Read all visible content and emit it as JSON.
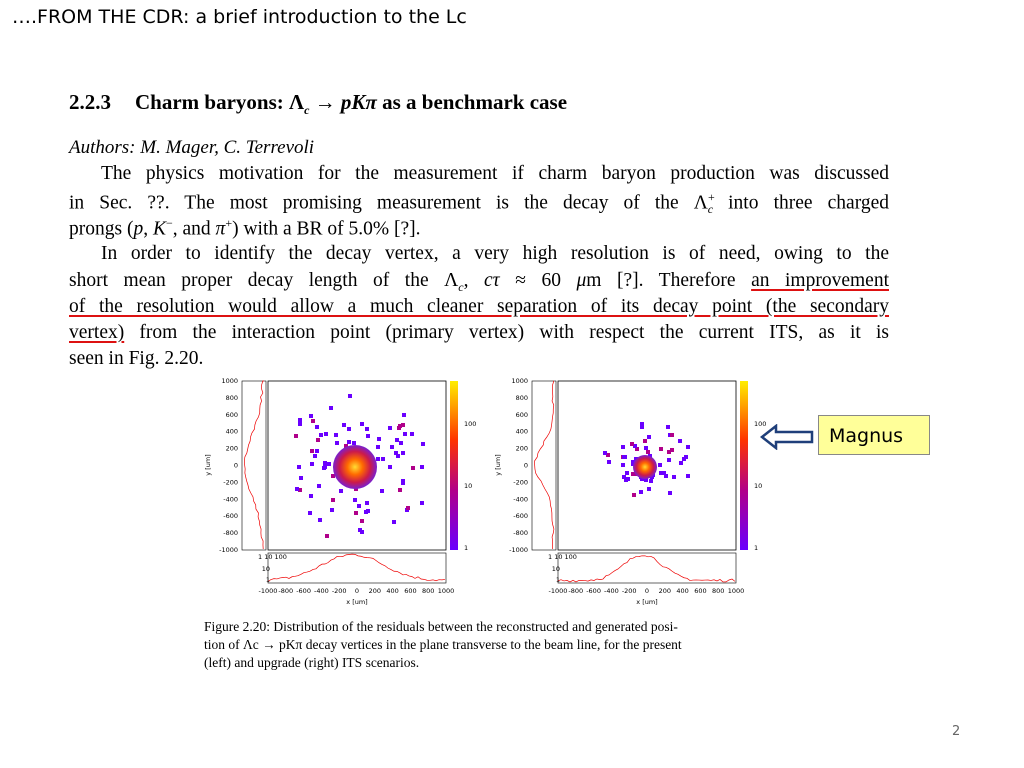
{
  "slide": {
    "title": "….FROM THE CDR: a brief introduction to the Lc",
    "page_number": "2"
  },
  "section": {
    "number": "2.2.3",
    "title": [
      "Charm baryons: Λ",
      "c",
      " → ",
      "pKπ",
      " as a benchmark case"
    ]
  },
  "authors": "Authors: M. Mager, C. Terrevoli",
  "paragraphs": [
    [
      [
        "The physics motivation for the measurement if charm baryon production was discussed"
      ],
      [
        "in Sec. ??. The most promising measurement is the decay of the Λ",
        "+",
        "c",
        " into three charged"
      ],
      [
        "prongs (",
        "p",
        ", ",
        "K",
        "−",
        ", and ",
        "π",
        "+",
        ") with a BR of 5.0% [?]."
      ]
    ],
    [
      [
        "In order to identify the decay vertex, a very high resolution is of need, owing to the"
      ],
      [
        "short mean proper decay length of the Λ",
        "c",
        ", ",
        "cτ",
        " ≈ 60 ",
        "μ",
        "m [?]. Therefore ",
        "an improvement"
      ],
      [
        "of the resolution would allow a much cleaner separation of its decay point (the secondary"
      ],
      [
        "vertex)",
        " from the interaction point (primary vertex) with respect the current ITS, as it is"
      ],
      [
        "seen in Fig. 2.20."
      ]
    ]
  ],
  "figure": {
    "y_ticks": [
      "1000",
      "800",
      "600",
      "400",
      "200",
      "0",
      "-200",
      "-400",
      "-600",
      "-800",
      "-1000"
    ],
    "x_ticks": [
      "-1000",
      "-800",
      "-600",
      "-400",
      "-200",
      "0",
      "200",
      "400",
      "600",
      "800",
      "1000"
    ],
    "projection_ticks": [
      "1  10 100",
      "10",
      "1"
    ],
    "colorbar_ticks": [
      "100",
      "10",
      "1"
    ],
    "y_label": "y [um]",
    "x_label": "x [um]",
    "caption": [
      "Figure 2.20: Distribution of the residuals between the reconstructed and generated posi-",
      "tion of Λc → pKπ decay vertices in the plane transverse to the beam line, for the present",
      "(left) and upgrade (right) ITS scenarios."
    ]
  },
  "callout": "Magnus"
}
